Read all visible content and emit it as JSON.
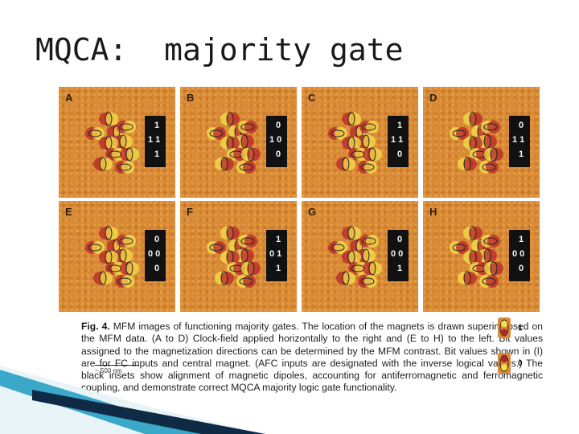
{
  "slide": {
    "title": "MQCA:  majority gate"
  },
  "figure": {
    "panels": [
      {
        "letter": "A",
        "bits": [
          "1",
          "1 1",
          "1"
        ]
      },
      {
        "letter": "B",
        "bits": [
          "0",
          "1 0",
          "0"
        ]
      },
      {
        "letter": "C",
        "bits": [
          "1",
          "1 1",
          "0"
        ]
      },
      {
        "letter": "D",
        "bits": [
          "0",
          "1 1",
          "1"
        ]
      },
      {
        "letter": "E",
        "bits": [
          "0",
          "0 0",
          "0"
        ]
      },
      {
        "letter": "F",
        "bits": [
          "1",
          "0 1",
          "1"
        ]
      },
      {
        "letter": "G",
        "bits": [
          "0",
          "0 0",
          "1"
        ]
      },
      {
        "letter": "H",
        "bits": [
          "1",
          "0 0",
          "0"
        ]
      }
    ],
    "scale_bar": "~ 500 nm",
    "legend": [
      {
        "value": "1",
        "color": "#f2d43a"
      },
      {
        "value": "0",
        "color": "#c0262a"
      }
    ],
    "caption": {
      "label": "Fig. 4.",
      "text": "MFM images of functioning majority gates. The location of the magnets is drawn superimposed on the MFM data. (A to D) Clock-field applied horizontally to the right and (E to H) to the left. Bit values assigned to the magnetization directions can be determined by the MFM contrast. Bit values shown in (I) are for FC inputs and central magnet. (AFC inputs are designated with the inverse logical values.) The black insets show alignment of magnetic dipoles, accounting for antiferromagnetic and ferromagnetic coupling, and demonstrate correct MQCA majority logic gate functionality."
    }
  },
  "colors": {
    "background": "#ffffff",
    "mfm_orange": "#d98a36",
    "bright_pole": "#f6e04a",
    "dark_pole": "#b8242a",
    "inset": "#111111",
    "decor_teal": "#3aa8c8",
    "decor_dark": "#0e2a44"
  }
}
